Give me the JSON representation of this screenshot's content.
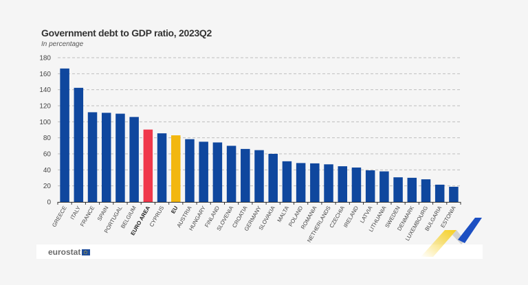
{
  "header": {
    "title": "Government debt to GDP ratio, 2023Q2",
    "subtitle": "In percentage"
  },
  "footer": {
    "brand": "eurostat",
    "flag_icon": "eu-flag-icon"
  },
  "colors": {
    "country": "#0f479e",
    "euro_area": "#f0384b",
    "eu": "#f2b710",
    "grid": "#bdbdbd",
    "text": "#444444",
    "deco_yellow": "#f7cf1e",
    "deco_blue": "#1c4fc2",
    "deco_grey": "#cfcfcf"
  },
  "chart_data": {
    "type": "bar",
    "title": "Government debt to GDP ratio, 2023Q2",
    "subtitle": "In percentage",
    "xlabel": "",
    "ylabel": "",
    "ylim": [
      0,
      180
    ],
    "yticks": [
      0,
      20,
      40,
      60,
      80,
      100,
      120,
      140,
      160,
      180
    ],
    "grid": true,
    "legend": "none",
    "categories": [
      "GREECE",
      "ITALY",
      "FRANCE",
      "SPAIN",
      "PORTUGAL",
      "BELGIUM",
      "EURO AREA",
      "CYPRUS",
      "EU",
      "AUSTRIA",
      "HUNGARY",
      "FINLAND",
      "SLOVENIA",
      "CROATIA",
      "GERMANY",
      "SLOVAKIA",
      "MALTA",
      "POLAND",
      "ROMANIA",
      "NETHERLANDS",
      "CZECHIA",
      "IRELAND",
      "LATVIA",
      "LITHUANIA",
      "SWEDEN",
      "DENMARK",
      "LUXEMBOURG",
      "BULGARIA",
      "ESTONIA"
    ],
    "values": [
      166.5,
      142.4,
      111.9,
      111.2,
      110.1,
      106.0,
      90.3,
      85.6,
      83.1,
      78.3,
      75.1,
      74.2,
      70.0,
      66.1,
      64.6,
      60.0,
      50.7,
      48.5,
      48.1,
      46.9,
      44.5,
      42.9,
      39.4,
      38.1,
      30.7,
      30.1,
      28.2,
      21.5,
      18.9
    ],
    "highlight": {
      "EURO AREA": "euro_area",
      "EU": "eu"
    },
    "bold_labels": [
      "EURO AREA",
      "EU"
    ]
  }
}
